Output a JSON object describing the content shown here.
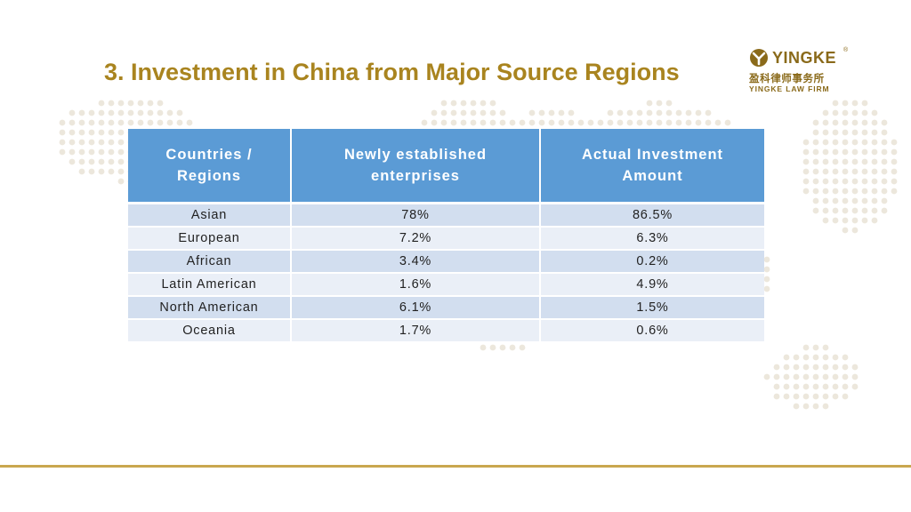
{
  "slide": {
    "title": "3. Investment in China from Major Source Regions"
  },
  "logo": {
    "brand": "YINGKE",
    "registered_mark": "®",
    "chinese_name": "盈科律师事务所",
    "english_name": "YINGKE LAW FIRM",
    "color": "#8a6a1a"
  },
  "table": {
    "headers": [
      "Countries / Regions",
      "Newly established enterprises",
      "Actual Investment Amount"
    ],
    "rows": [
      [
        "Asian",
        "78%",
        "86.5%"
      ],
      [
        "European",
        "7.2%",
        "6.3%"
      ],
      [
        "African",
        "3.4%",
        "0.2%"
      ],
      [
        "Latin American",
        "1.6%",
        "4.9%"
      ],
      [
        "North American",
        "6.1%",
        "1.5%"
      ],
      [
        "Oceania",
        "1.7%",
        "0.6%"
      ]
    ]
  },
  "colors": {
    "title": "#a9841f",
    "header_bg": "#5b9bd5",
    "row_odd": "#d2deef",
    "row_even": "#eaeff7",
    "rule": "#c9a74f",
    "map_dots": "#ece7dc"
  }
}
